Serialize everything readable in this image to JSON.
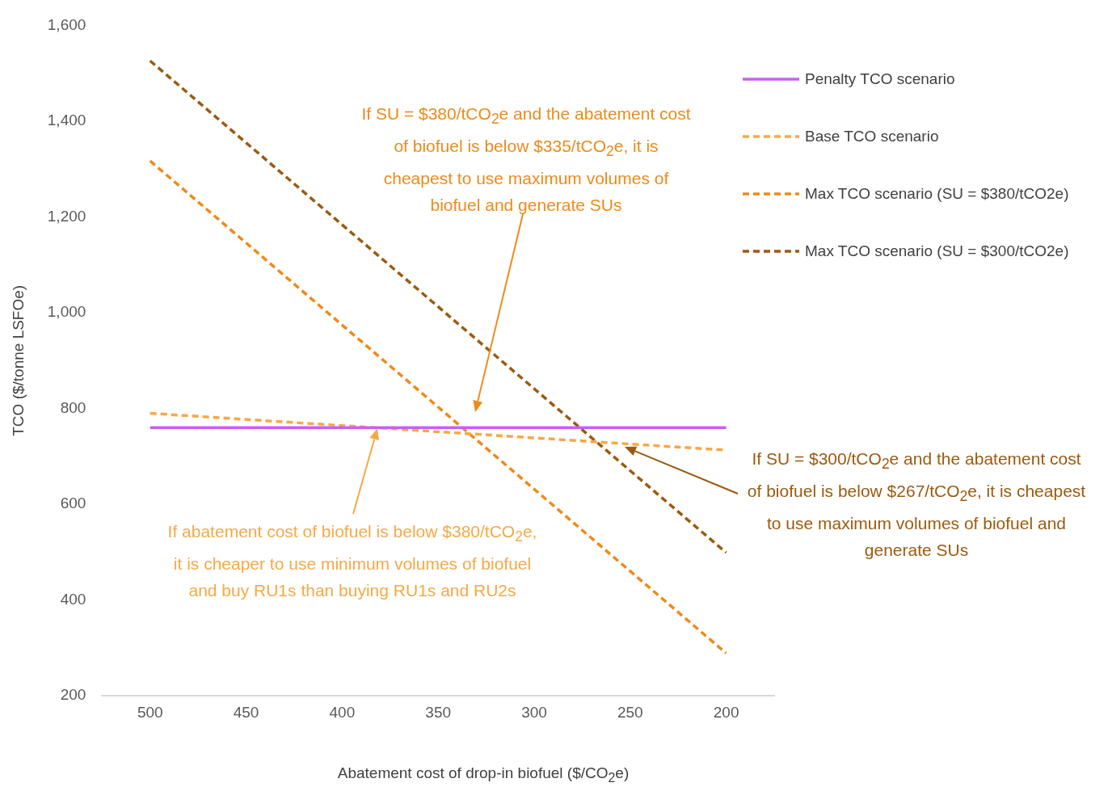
{
  "chart_data": {
    "type": "line",
    "xlabel": "Abatement cost of drop-in biofuel ($/CO$_{2}$e)",
    "ylabel": "TCO ($/tonne LSFOe)",
    "xlim": [
      525,
      175
    ],
    "xticks": [
      500,
      450,
      400,
      350,
      300,
      250,
      200
    ],
    "x": [
      500,
      200
    ],
    "ylim": [
      200,
      1600
    ],
    "yticks": [
      200,
      400,
      600,
      800,
      {
        "value": 1000,
        "label": "1,000"
      },
      {
        "value": 1200,
        "label": "1,200"
      },
      {
        "value": 1400,
        "label": "1,400"
      },
      {
        "value": 1600,
        "label": "1,600"
      }
    ],
    "grid": false,
    "legend": "right",
    "marker": "none",
    "series": [
      {
        "name": "Penalty TCO scenario",
        "color": "#c95ff2",
        "values": [
          760,
          760
        ],
        "line_style": "solid"
      },
      {
        "name": "Base TCO scenario",
        "color": "#f7a845",
        "values": [
          790,
          713
        ],
        "line_style": "dashed"
      },
      {
        "name": "Max TCO scenario (SU = $380/tCO2e)",
        "color": "#ee8a1a",
        "values": [
          1317,
          289
        ],
        "line_style": "dashed"
      },
      {
        "name": "Max TCO scenario (SU = $300/tCO2e)",
        "color": "#9c5a0e",
        "values": [
          1526,
          499
        ],
        "line_style": "dashed"
      }
    ],
    "annotations": [
      "If SU = $380/tCO$_{2}$e and the abatement cost of biofuel is below $335/tCO$_{2}$e, it is cheapest to use maximum volumes of biofuel and generate SUs",
      "If abatement cost of biofuel is below $380/tCO$_{2}$e, it is cheaper to use minimum volumes of biofuel and buy RU1s than buying RU1s and RU2s",
      "If SU = $300/tCO$_{2}$e and the abatement cost of biofuel is below $267/tCO$_{2}$e, it is cheapest to use maximum volumes of biofuel and generate SUs"
    ]
  }
}
